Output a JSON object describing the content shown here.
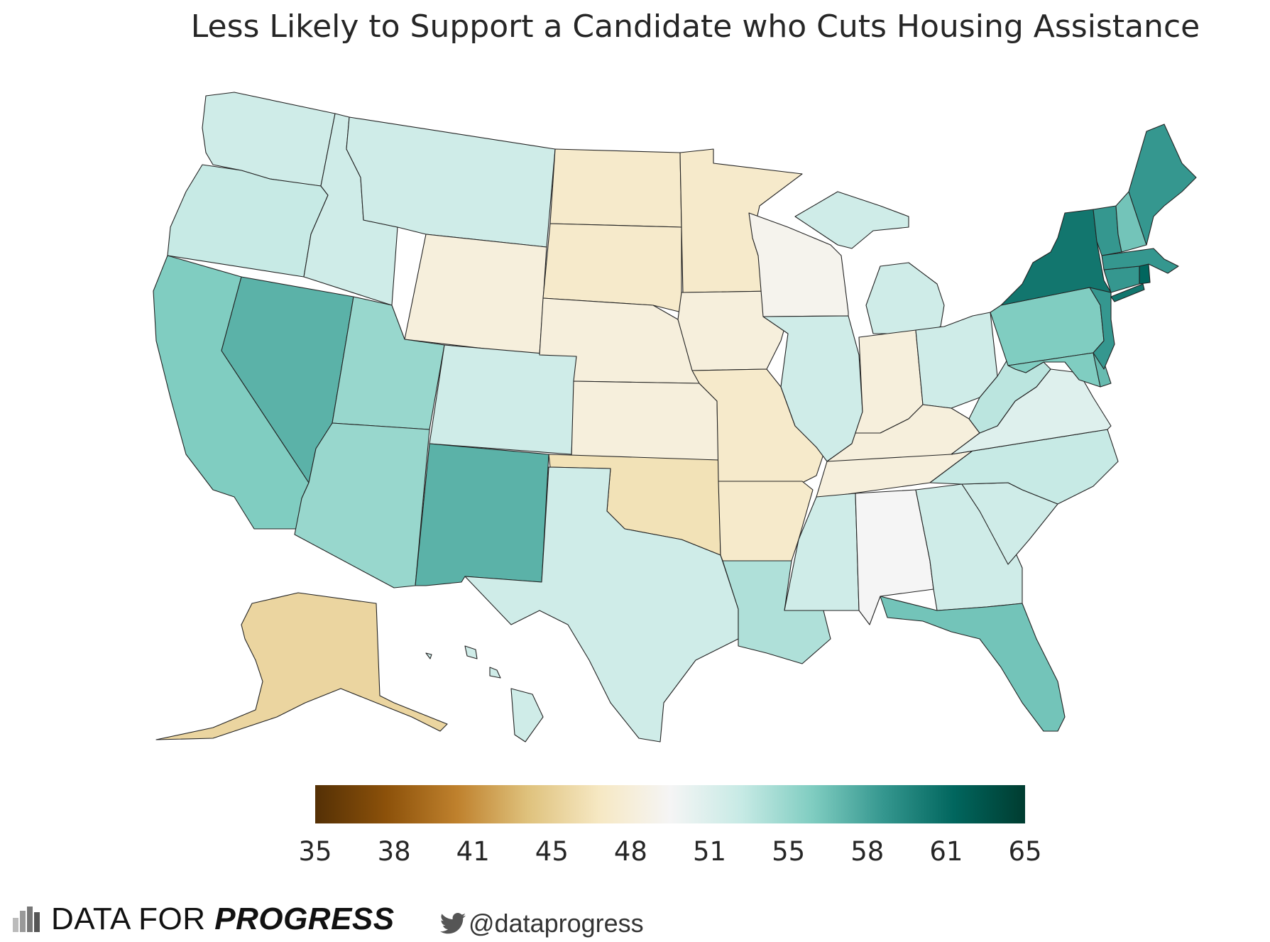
{
  "title": "Less Likely to Support a Candidate who Cuts Housing Assistance",
  "chart_data": {
    "type": "choropleth",
    "title": "Less Likely to Support a Candidate who Cuts Housing Assistance",
    "region": "United States (states)",
    "colormap": "BrBG",
    "color_range": [
      35,
      65
    ],
    "colorbar_ticks": [
      "35",
      "38",
      "41",
      "45",
      "48",
      "51",
      "55",
      "58",
      "61",
      "65"
    ],
    "colorbar_stops": [
      "#543005",
      "#8c510a",
      "#bf812d",
      "#dfc27d",
      "#f6e8c3",
      "#f5f5f5",
      "#c7eae5",
      "#80cdc1",
      "#35978f",
      "#01665e",
      "#003c30"
    ],
    "values": {
      "AK": 45.5,
      "AL": 50.0,
      "AR": 47.5,
      "AZ": 55.0,
      "CA": 56.0,
      "CO": 52.5,
      "CT": 59.0,
      "DE": 57.0,
      "FL": 56.5,
      "GA": 52.5,
      "HI": 52.5,
      "IA": 48.5,
      "ID": 52.5,
      "IL": 52.5,
      "IN": 48.5,
      "KS": 48.5,
      "KY": 48.5,
      "LA": 54.0,
      "MA": 59.0,
      "MD": 56.0,
      "ME": 59.0,
      "MI": 52.5,
      "MN": 47.5,
      "MO": 47.5,
      "MS": 52.5,
      "MT": 52.5,
      "NC": 53.0,
      "ND": 47.5,
      "NE": 48.5,
      "NH": 56.5,
      "NJ": 59.0,
      "NM": 57.5,
      "NV": 57.5,
      "NY": 61.0,
      "OH": 52.5,
      "OK": 46.5,
      "OR": 53.0,
      "PA": 56.0,
      "RI": 62.0,
      "SC": 52.5,
      "SD": 47.5,
      "TN": 48.5,
      "TX": 52.5,
      "UT": 55.0,
      "VA": 51.5,
      "VT": 59.0,
      "WA": 52.5,
      "WI": 49.5,
      "WV": 53.5,
      "WY": 48.5
    }
  },
  "footer": {
    "brand_prefix": "DATA FOR ",
    "brand_bold": "PROGRESS",
    "twitter_icon": "twitter-bird-icon",
    "twitter_handle": "@dataprogress"
  }
}
